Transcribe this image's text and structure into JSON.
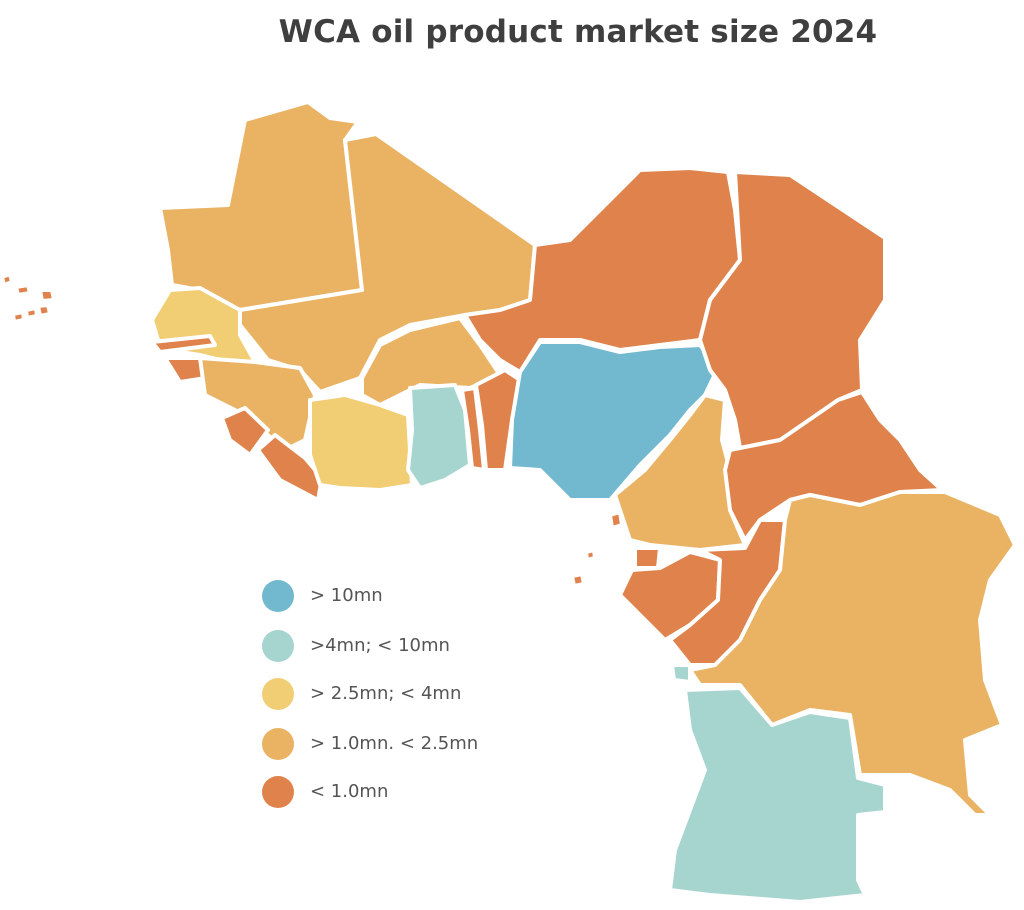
{
  "title": "WCA oil product market size 2024",
  "colors": {
    "gt10": "#72b8cf",
    "c4to10": "#a6d4cf",
    "c25to4": "#f1cd73",
    "c1to25": "#e9b363",
    "lt1": "#df824b",
    "border": "#ffffff"
  },
  "legend": [
    {
      "label": "> 10mn",
      "color": "#72b8cf"
    },
    {
      "label": ">4mn; < 10mn",
      "color": "#a6d4cf"
    },
    {
      "label": "> 2.5mn; < 4mn",
      "color": "#f1cd73"
    },
    {
      "label": "> 1.0mn. < 2.5mn",
      "color": "#e9b363"
    },
    {
      "label": "< 1.0mn",
      "color": "#df824b"
    }
  ]
}
